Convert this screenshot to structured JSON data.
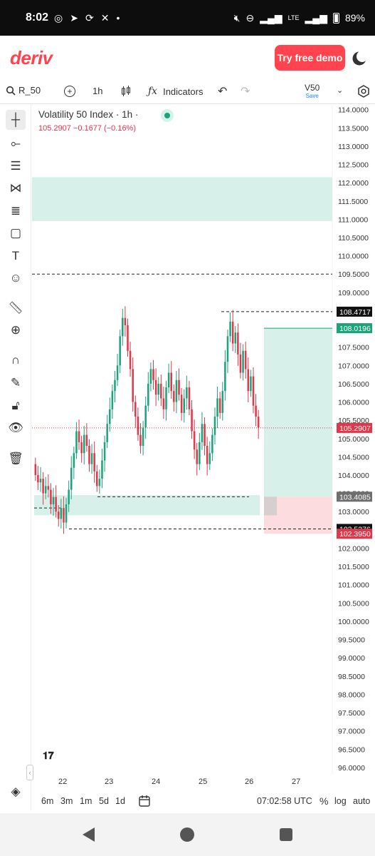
{
  "status_bar": {
    "time": "8:02",
    "network": "LTE",
    "battery": "89%"
  },
  "header": {
    "logo": "deriv",
    "demo_button": "Try free demo"
  },
  "toolbar": {
    "symbol": "R_50",
    "timeframe": "1h",
    "indicators": "Indicators",
    "account_code": "V50",
    "account_action": "Save"
  },
  "chart_header": {
    "title": "Volatility 50 Index · 1h ·",
    "price_line": "105.2907  −0.1677 (−0.16%)"
  },
  "chart_data": {
    "type": "candlestick",
    "title": "Volatility 50 Index · 1h ·",
    "ylim": [
      95.9,
      114.15
    ],
    "y_ticks": [
      114.0,
      113.5,
      113.0,
      112.5,
      112.0,
      111.5,
      111.0,
      110.5,
      110.0,
      109.5,
      109.0,
      108.5,
      108.0,
      107.5,
      107.0,
      106.5,
      106.0,
      105.5,
      105.0,
      104.5,
      104.0,
      103.5,
      103.0,
      102.5,
      102.0,
      101.5,
      101.0,
      100.5,
      100.0,
      99.5,
      99.0,
      98.5,
      98.0,
      97.5,
      97.0,
      96.5,
      96.0
    ],
    "x_labels": [
      "22",
      "23",
      "24",
      "25",
      "26",
      "27"
    ],
    "last_price": 105.2907,
    "price_tags": [
      {
        "value": 108.4717,
        "label": "108.4717",
        "color": "#111111"
      },
      {
        "value": 108.0196,
        "label": "108.0196",
        "color": "#1aa47a"
      },
      {
        "value": 105.2907,
        "label": "105.2907",
        "color": "#e0384b"
      },
      {
        "value": 103.4085,
        "label": "103.4085",
        "color": "#6e6e6e"
      },
      {
        "value": 102.5276,
        "label": "102.5276",
        "color": "#111111"
      },
      {
        "value": 102.395,
        "label": "102.3950",
        "color": "#e0384b"
      }
    ],
    "zones": [
      {
        "kind": "demand",
        "from": 110.95,
        "to": 112.15,
        "color": "#d7f0ea"
      },
      {
        "kind": "demand",
        "from": 102.9,
        "to": 103.45,
        "color": "#d7f0ea"
      },
      {
        "kind": "position-target",
        "from": 103.4085,
        "to": 108.0196,
        "color": "#d7f0ea"
      },
      {
        "kind": "position-stop",
        "from": 102.395,
        "to": 103.4085,
        "color": "#fcdcdf"
      }
    ],
    "horizontal_lines": [
      109.5,
      108.4717,
      103.4085,
      103.1,
      102.5276
    ],
    "closes": [
      104.0,
      103.8,
      103.9,
      103.5,
      103.7,
      103.6,
      103.2,
      103.4,
      103.0,
      102.8,
      103.1,
      102.7,
      103.2,
      103.6,
      104.2,
      104.6,
      105.2,
      104.9,
      104.6,
      105.1,
      104.8,
      104.3,
      104.6,
      104.1,
      103.7,
      103.9,
      104.4,
      104.9,
      105.4,
      105.8,
      106.3,
      106.6,
      107.0,
      107.8,
      108.3,
      108.1,
      107.4,
      106.9,
      106.0,
      105.6,
      105.1,
      104.8,
      105.3,
      105.9,
      106.5,
      106.9,
      106.6,
      106.2,
      106.5,
      106.1,
      105.8,
      106.4,
      106.8,
      106.3,
      106.0,
      106.6,
      106.2,
      105.7,
      106.1,
      106.4,
      105.8,
      105.2,
      104.7,
      104.3,
      104.9,
      105.4,
      104.8,
      104.3,
      104.6,
      105.1,
      105.6,
      106.1,
      105.7,
      106.3,
      107.1,
      107.8,
      108.2,
      107.6,
      107.9,
      107.3,
      106.8,
      107.4,
      106.9,
      106.3,
      106.7,
      105.9,
      105.6,
      105.3
    ]
  },
  "bottom_bar": {
    "periods": [
      "6m",
      "3m",
      "1m",
      "5d",
      "1d"
    ],
    "clock": "07:02:58 UTC",
    "percent": "%",
    "log": "log",
    "auto": "auto"
  },
  "icons": [
    "search-icon",
    "add-icon",
    "candlestick-icon",
    "function-icon",
    "undo-icon",
    "redo-icon",
    "settings-icon",
    "crosshair-icon",
    "line-icon",
    "hlines-icon",
    "pattern-icon",
    "fib-icon",
    "rectangle-icon",
    "text-icon",
    "emoji-icon",
    "ruler-icon",
    "zoom-icon",
    "magnet-icon",
    "lock-draw-icon",
    "lock-icon",
    "eye-icon",
    "trash-icon",
    "layers-icon",
    "calendar-icon"
  ]
}
